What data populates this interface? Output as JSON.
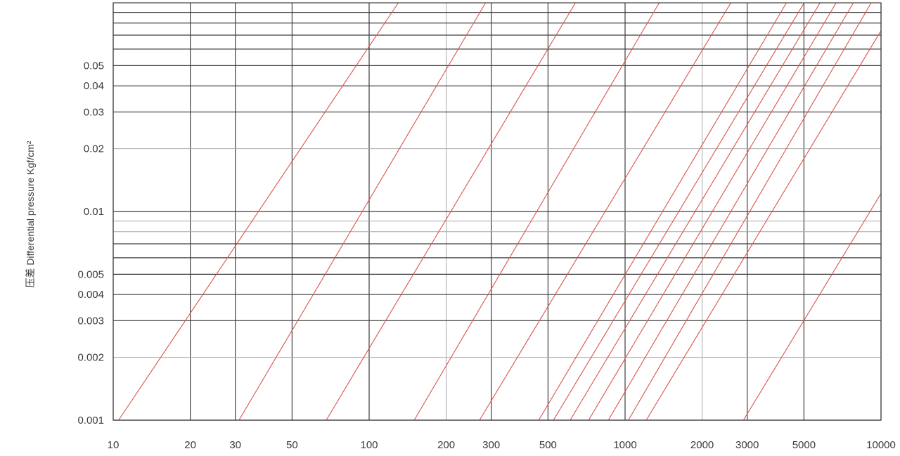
{
  "chart_data": {
    "type": "line",
    "title": "",
    "xlabel": "",
    "ylabel": "压差 Differential pressure Kgf/cm²",
    "x_scale": "log",
    "y_scale": "log",
    "xlim": [
      10,
      10000
    ],
    "ylim": [
      0.001,
      0.1
    ],
    "x_ticks": [
      10,
      20,
      30,
      50,
      100,
      200,
      300,
      500,
      1000,
      2000,
      3000,
      5000,
      10000
    ],
    "x_tick_labels": [
      "10",
      "20",
      "30",
      "50",
      "100",
      "200",
      "300",
      "500",
      "1000",
      "2000",
      "3000",
      "5000",
      "10000"
    ],
    "y_ticks": [
      0.001,
      0.002,
      0.003,
      0.004,
      0.005,
      0.01,
      0.02,
      0.03,
      0.04,
      0.05
    ],
    "y_tick_labels": [
      "0.001",
      "0.002",
      "0.003",
      "0.004",
      "0.005",
      "0.01",
      "0.02",
      "0.03",
      "0.04",
      "0.05"
    ],
    "grid": true,
    "line_color": "#d9534f",
    "series": [
      {
        "x": [
          10.5,
          130
        ],
        "y": [
          0.001,
          0.1
        ]
      },
      {
        "x": [
          31,
          285
        ],
        "y": [
          0.001,
          0.1
        ]
      },
      {
        "x": [
          68,
          640
        ],
        "y": [
          0.001,
          0.1
        ]
      },
      {
        "x": [
          150,
          1360
        ],
        "y": [
          0.001,
          0.1
        ]
      },
      {
        "x": [
          270,
          2590
        ],
        "y": [
          0.001,
          0.1
        ]
      },
      {
        "x": [
          460,
          4270
        ],
        "y": [
          0.001,
          0.1
        ]
      },
      {
        "x": [
          525,
          5010
        ],
        "y": [
          0.001,
          0.1
        ]
      },
      {
        "x": [
          610,
          5780
        ],
        "y": [
          0.001,
          0.1
        ]
      },
      {
        "x": [
          720,
          6680
        ],
        "y": [
          0.001,
          0.1
        ]
      },
      {
        "x": [
          860,
          7800
        ],
        "y": [
          0.001,
          0.1
        ]
      },
      {
        "x": [
          1030,
          9150
        ],
        "y": [
          0.001,
          0.1
        ]
      },
      {
        "x": [
          1210,
          10000
        ],
        "y": [
          0.001,
          0.0735
        ]
      },
      {
        "x": [
          2900,
          10000
        ],
        "y": [
          0.001,
          0.0122
        ]
      }
    ]
  }
}
